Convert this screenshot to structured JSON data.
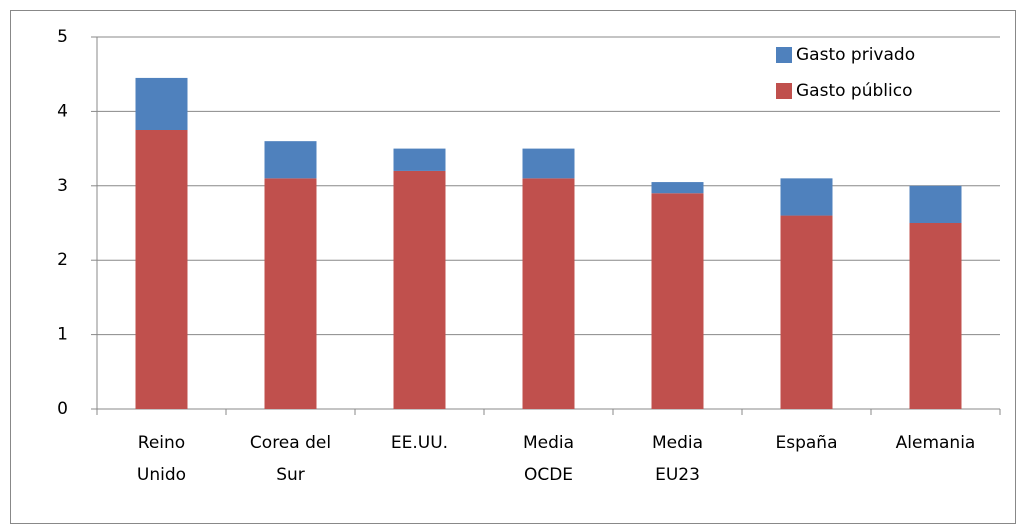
{
  "chart_data": {
    "type": "stacked_bar",
    "categories": [
      "Reino\nUnido",
      "Corea del\nSur",
      "EE.UU.",
      "Media\nOCDE",
      "Media\nEU23",
      "España",
      "Alemania"
    ],
    "series": [
      {
        "name": "Gasto público",
        "color": "#c0504d",
        "values": [
          3.75,
          3.1,
          3.2,
          3.1,
          2.9,
          2.6,
          2.5
        ]
      },
      {
        "name": "Gasto privado",
        "color": "#4f81bd",
        "values": [
          0.7,
          0.5,
          0.3,
          0.4,
          0.15,
          0.5,
          0.5
        ]
      }
    ],
    "ylim": [
      0,
      5
    ],
    "yticks": [
      0,
      1,
      2,
      3,
      4,
      5
    ],
    "grid": true,
    "legend": "top-right"
  }
}
